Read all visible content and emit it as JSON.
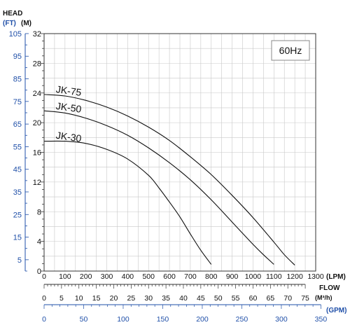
{
  "chart_data": {
    "type": "line",
    "frequency_label": "60Hz",
    "head_label": "HEAD",
    "head_ft_unit": "(FT)",
    "head_m_unit": "(M)",
    "flow_label": "FLOW",
    "lpm_unit": "(LPM)",
    "m3h_unit": "(M³/h)",
    "gpm_unit": "(GPM)",
    "y_m": {
      "min": 0,
      "max": 32,
      "ticks": [
        "0",
        "4",
        "8",
        "12",
        "16",
        "20",
        "24",
        "28",
        "32"
      ]
    },
    "y_ft": {
      "ticks": [
        {
          "label": "5",
          "m": 1.524
        },
        {
          "label": "15",
          "m": 4.572
        },
        {
          "label": "25",
          "m": 7.62
        },
        {
          "label": "35",
          "m": 10.668
        },
        {
          "label": "45",
          "m": 13.716
        },
        {
          "label": "55",
          "m": 16.764
        },
        {
          "label": "65",
          "m": 19.812
        },
        {
          "label": "75",
          "m": 22.86
        },
        {
          "label": "85",
          "m": 25.908
        },
        {
          "label": "95",
          "m": 28.956
        },
        {
          "label": "105",
          "m": 32.004
        }
      ]
    },
    "x_lpm": {
      "min": 0,
      "max": 1300,
      "ticks": [
        "0",
        "100",
        "200",
        "300",
        "400",
        "500",
        "600",
        "700",
        "800",
        "900",
        "1000",
        "1100",
        "1200",
        "1300"
      ]
    },
    "x_m3h": {
      "ticks": [
        "0",
        "5",
        "10",
        "15",
        "20",
        "25",
        "30",
        "35",
        "40",
        "45",
        "50",
        "55",
        "60",
        "65",
        "70",
        "75"
      ]
    },
    "x_gpm": {
      "ticks": [
        "0",
        "50",
        "100",
        "150",
        "200",
        "250",
        "300",
        "350"
      ]
    },
    "grid": true,
    "series": [
      {
        "name": "JK-75",
        "x": [
          0,
          100,
          200,
          300,
          400,
          500,
          600,
          700,
          800,
          900,
          1000,
          1100,
          1150,
          1200
        ],
        "y": [
          23.8,
          23.6,
          23.0,
          22.1,
          20.9,
          19.4,
          17.6,
          15.4,
          13.0,
          10.2,
          7.2,
          3.9,
          2.2,
          0.8
        ]
      },
      {
        "name": "JK-50",
        "x": [
          0,
          100,
          200,
          300,
          400,
          500,
          600,
          700,
          800,
          900,
          1000,
          1050,
          1100
        ],
        "y": [
          21.6,
          21.3,
          20.6,
          19.6,
          18.3,
          16.6,
          14.6,
          12.3,
          9.6,
          6.6,
          3.6,
          2.2,
          0.9
        ]
      },
      {
        "name": "JK-30",
        "x": [
          0,
          100,
          200,
          300,
          400,
          500,
          550,
          600,
          650,
          700,
          750,
          800
        ],
        "y": [
          17.5,
          17.5,
          17.2,
          16.4,
          15.1,
          12.9,
          11.2,
          9.3,
          7.3,
          5.0,
          2.8,
          0.9
        ]
      }
    ]
  }
}
